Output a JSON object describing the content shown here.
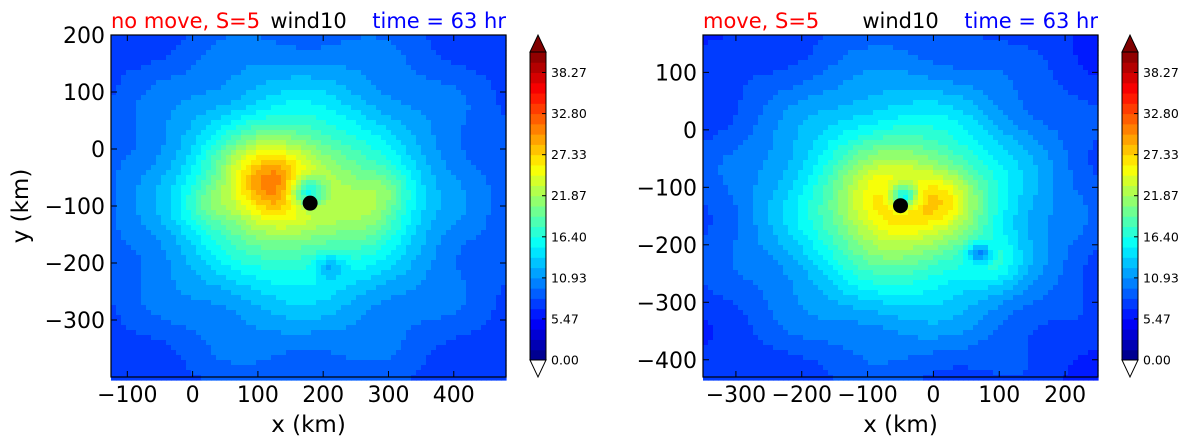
{
  "colors": {
    "left_title": "#ff0000",
    "center_title": "#000000",
    "right_title": "#0000ff",
    "marker": "#000000"
  },
  "colormap": "jet",
  "chart_data": [
    {
      "type": "heatmap",
      "title_left": "no move, S=5",
      "title_center": "wind10",
      "title_right": "time = 63 hr",
      "xlabel": "x (km)",
      "ylabel": "y (km)",
      "xlim": [
        -125,
        480
      ],
      "ylim": [
        -400,
        200
      ],
      "xticks": [
        -100,
        0,
        100,
        200,
        300,
        400
      ],
      "xtick_labels": [
        "−100",
        "0",
        "100",
        "200",
        "300",
        "400"
      ],
      "yticks": [
        200,
        100,
        0,
        -100,
        -200,
        -300
      ],
      "ytick_labels": [
        "200",
        "100",
        "0",
        "−100",
        "−200",
        "−300"
      ],
      "center_marker": {
        "x": 180,
        "y": -95
      },
      "wind_field": {
        "background": 5.0,
        "plateau": {
          "x": 170,
          "y": -90,
          "radius": 360,
          "value": 8.0
        },
        "core": {
          "x": 155,
          "y": -80,
          "radius": 150,
          "value": 10.0
        },
        "maxima": [
          {
            "x": 115,
            "y": -55,
            "radius": 70,
            "value": 9.0
          },
          {
            "x": 275,
            "y": -110,
            "radius": 55,
            "value": 4.0
          },
          {
            "x": 20,
            "y": -100,
            "radius": 40,
            "value": 3.0
          },
          {
            "x": 300,
            "y": -70,
            "radius": 40,
            "value": 3.0
          }
        ],
        "minima": [
          {
            "x": 175,
            "y": -75,
            "radius": 28,
            "value": 11.0
          },
          {
            "x": 210,
            "y": -205,
            "radius": 22,
            "value": 4.0
          }
        ]
      },
      "colorbar": {
        "min": 0.0,
        "max": 41.0,
        "tick_values": [
          0.0,
          5.47,
          10.93,
          16.4,
          21.87,
          27.33,
          32.8,
          38.27
        ],
        "tick_labels": [
          "0.00",
          "5.47",
          "10.93",
          "16.40",
          "21.87",
          "27.33",
          "32.80",
          "38.27"
        ],
        "extend": "both"
      }
    },
    {
      "type": "heatmap",
      "title_left": "move, S=5",
      "title_center": "wind10",
      "title_right": "time = 63 hr",
      "xlabel": "x (km)",
      "ylabel": "",
      "xlim": [
        -350,
        250
      ],
      "ylim": [
        -430,
        165
      ],
      "xticks": [
        -300,
        -200,
        -100,
        0,
        100,
        200
      ],
      "xtick_labels": [
        "−300",
        "−200",
        "−100",
        "0",
        "100",
        "200"
      ],
      "yticks": [
        100,
        0,
        -100,
        -200,
        -300,
        -400
      ],
      "ytick_labels": [
        "100",
        "0",
        "−100",
        "−200",
        "−300",
        "−400"
      ],
      "center_marker": {
        "x": -50,
        "y": -132
      },
      "wind_field": {
        "background": 4.5,
        "plateau": {
          "x": -50,
          "y": -130,
          "radius": 360,
          "value": 7.5
        },
        "core": {
          "x": -40,
          "y": -130,
          "radius": 160,
          "value": 11.0
        },
        "maxima": [
          {
            "x": -70,
            "y": -130,
            "radius": 75,
            "value": 5.0
          },
          {
            "x": 20,
            "y": -120,
            "radius": 50,
            "value": 4.0
          },
          {
            "x": 90,
            "y": -230,
            "radius": 40,
            "value": 3.0
          }
        ],
        "minima": [
          {
            "x": -45,
            "y": -115,
            "radius": 22,
            "value": 12.0
          },
          {
            "x": 70,
            "y": -215,
            "radius": 18,
            "value": 8.0
          }
        ]
      },
      "colorbar": {
        "min": 0.0,
        "max": 41.0,
        "tick_values": [
          0.0,
          5.47,
          10.93,
          16.4,
          21.87,
          27.33,
          32.8,
          38.27
        ],
        "tick_labels": [
          "0.00",
          "5.47",
          "10.93",
          "16.40",
          "21.87",
          "27.33",
          "32.80",
          "38.27"
        ],
        "extend": "both"
      }
    }
  ]
}
